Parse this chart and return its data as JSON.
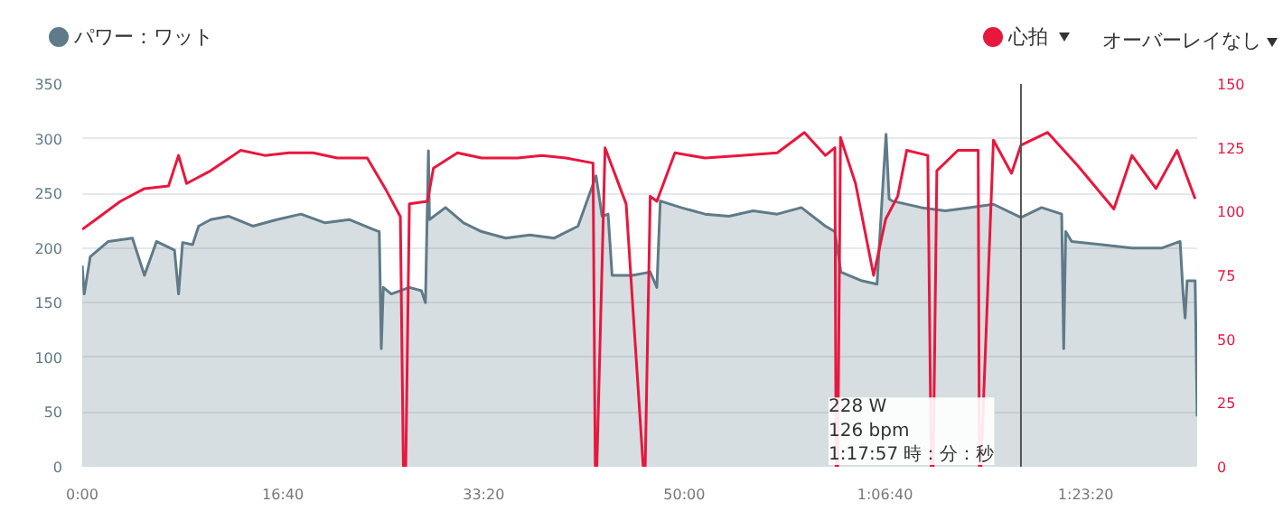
{
  "chart_data": {
    "type": "area",
    "series": [
      {
        "name": "パワー：ワット",
        "color": "#5f7a88",
        "x": [
          0,
          10,
          40,
          130,
          250,
          310,
          370,
          460,
          480,
          500,
          550,
          580,
          640,
          730,
          850,
          970,
          1090,
          1210,
          1330,
          1450,
          1480,
          1490,
          1500,
          1540,
          1630,
          1690,
          1710,
          1725,
          1730,
          1810,
          1900,
          1990,
          2110,
          2230,
          2350,
          2470,
          2560,
          2590,
          2620,
          2640,
          2740,
          2830,
          2863,
          2880,
          2983,
          3103,
          3223,
          3343,
          3463,
          3583,
          3703,
          3750,
          3780,
          3885,
          3960,
          3990,
          4005,
          4020,
          4036,
          4180,
          4300,
          4420,
          4540,
          4677,
          4780,
          4880,
          4890,
          4900,
          4930,
          5080,
          5230,
          5380,
          5470,
          5485,
          5495,
          5505,
          5545,
          5555
        ],
        "values": [
          184,
          158,
          192,
          206,
          209,
          175,
          206,
          198,
          158,
          205,
          203,
          220,
          226,
          229,
          220,
          226,
          231,
          223,
          226,
          217,
          215,
          108,
          164,
          158,
          164,
          161,
          150,
          289,
          226,
          237,
          223,
          215,
          209,
          212,
          209,
          220,
          266,
          229,
          231,
          175,
          175,
          178,
          164,
          243,
          237,
          231,
          229,
          234,
          231,
          237,
          220,
          215,
          178,
          170,
          167,
          260,
          304,
          245,
          243,
          237,
          234,
          237,
          240,
          228,
          237,
          231,
          108,
          215,
          206,
          203,
          200,
          200,
          206,
          158,
          136,
          170,
          170,
          46
        ]
      },
      {
        "name": "心拍",
        "type": "line",
        "axis": "y2",
        "color": "#e8173e",
        "x": [
          0,
          70,
          190,
          310,
          430,
          480,
          520,
          640,
          790,
          910,
          1030,
          1150,
          1270,
          1420,
          1510,
          1585,
          1600,
          1612,
          1630,
          1720,
          1750,
          1870,
          1990,
          2170,
          2290,
          2410,
          2545,
          2556,
          2564,
          2605,
          2710,
          2795,
          2805,
          2830,
          2863,
          2953,
          3103,
          3283,
          3463,
          3598,
          3703,
          3750,
          3756,
          3764,
          3778,
          3853,
          3943,
          4003,
          4063,
          4108,
          4213,
          4230,
          4240,
          4258,
          4363,
          4464,
          4470,
          4478,
          4540,
          4630,
          4677,
          4810,
          4960,
          5140,
          5230,
          5350,
          5455,
          5545
        ],
        "values": [
          93,
          97,
          104,
          109,
          110,
          122,
          111,
          116,
          124,
          122,
          123,
          123,
          121,
          121,
          109,
          98,
          0,
          0,
          103,
          104,
          117,
          123,
          121,
          121,
          122,
          121,
          119,
          0,
          0,
          125,
          103,
          0,
          0,
          106,
          104,
          123,
          121,
          122,
          123,
          131,
          122,
          125,
          0,
          0,
          129,
          111,
          75,
          97,
          106,
          124,
          122,
          0,
          0,
          116,
          124,
          124,
          0,
          0,
          128,
          115,
          126,
          131,
          118,
          101,
          122,
          109,
          124,
          105
        ]
      }
    ],
    "xlim": [
      0,
      5555
    ],
    "xticks": [
      {
        "value": 0,
        "label": "0:00"
      },
      {
        "value": 1000,
        "label": "16:40"
      },
      {
        "value": 2000,
        "label": "33:20"
      },
      {
        "value": 3000,
        "label": "50:00"
      },
      {
        "value": 4000,
        "label": "1:06:40"
      },
      {
        "value": 5000,
        "label": "1:23:20"
      }
    ],
    "ylim": [
      0,
      350
    ],
    "yticks": [
      0,
      50,
      100,
      150,
      200,
      250,
      300,
      350
    ],
    "y2lim": [
      0,
      150
    ],
    "y2ticks": [
      0,
      25,
      50,
      75,
      100,
      125,
      150
    ],
    "ref_lines": [
      {
        "axis": "x",
        "value": 4677,
        "color": "#555555"
      }
    ],
    "annotations": [
      "228 W\n126 bpm\n1:17:57 時：分：秒",
      "オーバーレイなし"
    ],
    "grid": "y",
    "legend": "top",
    "marker": "none",
    "line_style": "solid"
  }
}
